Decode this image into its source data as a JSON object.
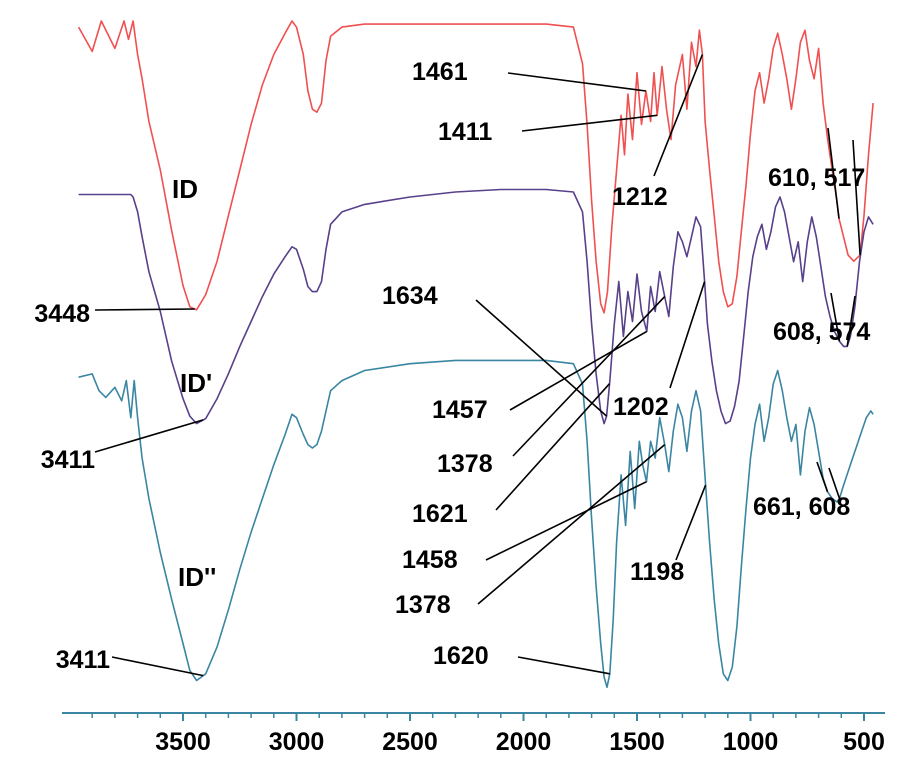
{
  "chart_data": {
    "type": "line",
    "title": "",
    "xlabel": "",
    "ylabel": "",
    "x_reversed": true,
    "xlim": [
      4000,
      450
    ],
    "x_ticks": [
      3500,
      3000,
      2500,
      2000,
      1500,
      1000,
      500
    ],
    "x_tick_labels": [
      "3500",
      "3000",
      "2500",
      "2000",
      "1500",
      "1000",
      "500"
    ],
    "grid": false,
    "legend": "none",
    "series": [
      {
        "name": "ID",
        "color": "#f05050",
        "x": [
          3960,
          3900,
          3860,
          3800,
          3760,
          3740,
          3720,
          3700,
          3680,
          3650,
          3600,
          3550,
          3500,
          3470,
          3440,
          3400,
          3350,
          3300,
          3250,
          3200,
          3150,
          3100,
          3050,
          3020,
          3000,
          2970,
          2950,
          2930,
          2910,
          2890,
          2870,
          2850,
          2800,
          2700,
          2500,
          2300,
          2100,
          1900,
          1780,
          1740,
          1720,
          1700,
          1680,
          1660,
          1645,
          1630,
          1610,
          1590,
          1570,
          1555,
          1540,
          1520,
          1500,
          1480,
          1461,
          1440,
          1425,
          1411,
          1390,
          1370,
          1350,
          1330,
          1300,
          1280,
          1260,
          1240,
          1225,
          1212,
          1200,
          1180,
          1160,
          1140,
          1120,
          1100,
          1080,
          1060,
          1040,
          1020,
          1000,
          980,
          960,
          940,
          920,
          900,
          880,
          860,
          840,
          820,
          800,
          780,
          760,
          740,
          720,
          700,
          680,
          660,
          640,
          620,
          610,
          590,
          570,
          545,
          517,
          500,
          480,
          460
        ],
        "y": [
          0.97,
          0.89,
          0.99,
          0.9,
          0.99,
          0.93,
          0.99,
          0.88,
          0.8,
          0.66,
          0.5,
          0.3,
          0.12,
          0.05,
          0.04,
          0.09,
          0.2,
          0.35,
          0.5,
          0.65,
          0.78,
          0.88,
          0.95,
          0.99,
          0.97,
          0.88,
          0.76,
          0.7,
          0.69,
          0.72,
          0.86,
          0.94,
          0.97,
          0.98,
          0.98,
          0.98,
          0.98,
          0.98,
          0.97,
          0.85,
          0.65,
          0.4,
          0.2,
          0.06,
          0.03,
          0.1,
          0.32,
          0.5,
          0.68,
          0.55,
          0.75,
          0.6,
          0.82,
          0.65,
          0.76,
          0.66,
          0.82,
          0.68,
          0.84,
          0.7,
          0.6,
          0.78,
          0.88,
          0.7,
          0.92,
          0.84,
          0.96,
          0.88,
          0.66,
          0.5,
          0.35,
          0.2,
          0.1,
          0.05,
          0.06,
          0.15,
          0.3,
          0.45,
          0.62,
          0.76,
          0.82,
          0.72,
          0.8,
          0.9,
          0.95,
          0.88,
          0.8,
          0.7,
          0.8,
          0.92,
          0.96,
          0.86,
          0.8,
          0.9,
          0.72,
          0.6,
          0.5,
          0.4,
          0.34,
          0.28,
          0.22,
          0.2,
          0.22,
          0.35,
          0.55,
          0.72
        ]
      },
      {
        "name": "ID'",
        "color": "#58408a",
        "x": [
          3960,
          3900,
          3850,
          3800,
          3760,
          3730,
          3720,
          3700,
          3680,
          3650,
          3600,
          3550,
          3500,
          3470,
          3440,
          3400,
          3350,
          3300,
          3250,
          3200,
          3150,
          3100,
          3050,
          3020,
          3000,
          2970,
          2950,
          2930,
          2910,
          2890,
          2870,
          2850,
          2800,
          2700,
          2500,
          2300,
          2100,
          1900,
          1780,
          1740,
          1720,
          1700,
          1680,
          1660,
          1645,
          1634,
          1620,
          1600,
          1580,
          1560,
          1540,
          1520,
          1500,
          1480,
          1457,
          1440,
          1420,
          1400,
          1378,
          1360,
          1340,
          1320,
          1300,
          1280,
          1260,
          1240,
          1220,
          1202,
          1190,
          1170,
          1150,
          1130,
          1110,
          1090,
          1070,
          1050,
          1030,
          1010,
          990,
          970,
          950,
          930,
          910,
          890,
          870,
          850,
          830,
          810,
          790,
          770,
          750,
          730,
          710,
          690,
          670,
          650,
          630,
          608,
          590,
          574,
          560,
          540,
          520,
          500,
          480,
          460
        ],
        "y": [
          0.97,
          0.97,
          0.97,
          0.97,
          0.97,
          0.97,
          0.96,
          0.9,
          0.8,
          0.66,
          0.5,
          0.3,
          0.15,
          0.08,
          0.05,
          0.07,
          0.15,
          0.25,
          0.36,
          0.46,
          0.56,
          0.65,
          0.72,
          0.76,
          0.75,
          0.67,
          0.6,
          0.58,
          0.58,
          0.62,
          0.75,
          0.85,
          0.9,
          0.93,
          0.96,
          0.98,
          0.99,
          0.99,
          0.98,
          0.9,
          0.7,
          0.45,
          0.25,
          0.1,
          0.05,
          0.08,
          0.22,
          0.45,
          0.62,
          0.4,
          0.58,
          0.46,
          0.65,
          0.5,
          0.42,
          0.6,
          0.5,
          0.66,
          0.56,
          0.48,
          0.68,
          0.82,
          0.78,
          0.72,
          0.8,
          0.88,
          0.84,
          0.62,
          0.45,
          0.3,
          0.18,
          0.1,
          0.05,
          0.06,
          0.12,
          0.22,
          0.4,
          0.58,
          0.72,
          0.8,
          0.85,
          0.75,
          0.82,
          0.92,
          0.96,
          0.9,
          0.8,
          0.7,
          0.78,
          0.62,
          0.78,
          0.88,
          0.8,
          0.68,
          0.56,
          0.48,
          0.42,
          0.38,
          0.36,
          0.36,
          0.4,
          0.52,
          0.7,
          0.82,
          0.88,
          0.85
        ]
      },
      {
        "name": "ID''",
        "color": "#3a86a2",
        "x": [
          3960,
          3900,
          3870,
          3840,
          3800,
          3770,
          3750,
          3730,
          3715,
          3700,
          3680,
          3650,
          3600,
          3550,
          3500,
          3470,
          3440,
          3400,
          3350,
          3300,
          3250,
          3200,
          3150,
          3100,
          3050,
          3020,
          3000,
          2970,
          2950,
          2930,
          2910,
          2890,
          2870,
          2850,
          2800,
          2700,
          2500,
          2300,
          2100,
          1900,
          1780,
          1740,
          1720,
          1700,
          1680,
          1660,
          1645,
          1632,
          1620,
          1605,
          1590,
          1570,
          1550,
          1530,
          1510,
          1490,
          1475,
          1458,
          1440,
          1420,
          1400,
          1378,
          1360,
          1340,
          1320,
          1300,
          1280,
          1260,
          1240,
          1220,
          1198,
          1180,
          1160,
          1140,
          1120,
          1100,
          1080,
          1060,
          1040,
          1020,
          1000,
          980,
          960,
          940,
          920,
          900,
          880,
          860,
          840,
          820,
          800,
          780,
          760,
          740,
          720,
          700,
          680,
          661,
          640,
          620,
          608,
          590,
          570,
          550,
          530,
          510,
          490,
          470,
          460
        ],
        "y": [
          0.94,
          0.95,
          0.9,
          0.88,
          0.91,
          0.87,
          0.93,
          0.82,
          0.93,
          0.82,
          0.7,
          0.58,
          0.42,
          0.28,
          0.15,
          0.07,
          0.04,
          0.06,
          0.14,
          0.25,
          0.37,
          0.48,
          0.58,
          0.68,
          0.77,
          0.83,
          0.82,
          0.77,
          0.74,
          0.73,
          0.74,
          0.78,
          0.84,
          0.9,
          0.93,
          0.96,
          0.98,
          0.99,
          0.99,
          0.99,
          0.98,
          0.92,
          0.75,
          0.52,
          0.32,
          0.15,
          0.05,
          0.02,
          0.06,
          0.22,
          0.45,
          0.65,
          0.5,
          0.72,
          0.55,
          0.75,
          0.68,
          0.63,
          0.75,
          0.7,
          0.82,
          0.74,
          0.66,
          0.78,
          0.86,
          0.82,
          0.72,
          0.84,
          0.9,
          0.84,
          0.62,
          0.45,
          0.28,
          0.15,
          0.06,
          0.04,
          0.08,
          0.2,
          0.38,
          0.55,
          0.7,
          0.8,
          0.86,
          0.75,
          0.82,
          0.92,
          0.96,
          0.9,
          0.82,
          0.75,
          0.8,
          0.65,
          0.78,
          0.85,
          0.8,
          0.72,
          0.64,
          0.6,
          0.58,
          0.57,
          0.58,
          0.62,
          0.66,
          0.7,
          0.74,
          0.78,
          0.82,
          0.84,
          0.83
        ]
      }
    ],
    "annotations": [
      {
        "text": "1461",
        "series": "ID",
        "x": 1461
      },
      {
        "text": "1411",
        "series": "ID",
        "x": 1411
      },
      {
        "text": "1212",
        "series": "ID",
        "x": 1212
      },
      {
        "text": "610, 517",
        "series": "ID",
        "x": [
          610,
          517
        ]
      },
      {
        "text": "3448",
        "series": "ID",
        "x": 3448
      },
      {
        "text": "1634",
        "series": "ID'",
        "x": 1634
      },
      {
        "text": "608, 574",
        "series": "ID'",
        "x": [
          608,
          574
        ]
      },
      {
        "text": "1457",
        "series": "ID'",
        "x": 1457
      },
      {
        "text": "1202",
        "series": "ID'",
        "x": 1202
      },
      {
        "text": "1378",
        "series": "ID'",
        "x": 1378
      },
      {
        "text": "3411",
        "series": "ID'",
        "x": 3411
      },
      {
        "text": "1621",
        "series": "ID'",
        "x": 1621
      },
      {
        "text": "661, 608",
        "series": "ID''",
        "x": [
          661,
          608
        ]
      },
      {
        "text": "1458",
        "series": "ID''",
        "x": 1458
      },
      {
        "text": "1198",
        "series": "ID''",
        "x": 1198
      },
      {
        "text": "1378",
        "series": "ID''",
        "x": 1378
      },
      {
        "text": "3411",
        "series": "ID''",
        "x": 3411
      },
      {
        "text": "1620",
        "series": "ID''",
        "x": 1620
      }
    ]
  }
}
